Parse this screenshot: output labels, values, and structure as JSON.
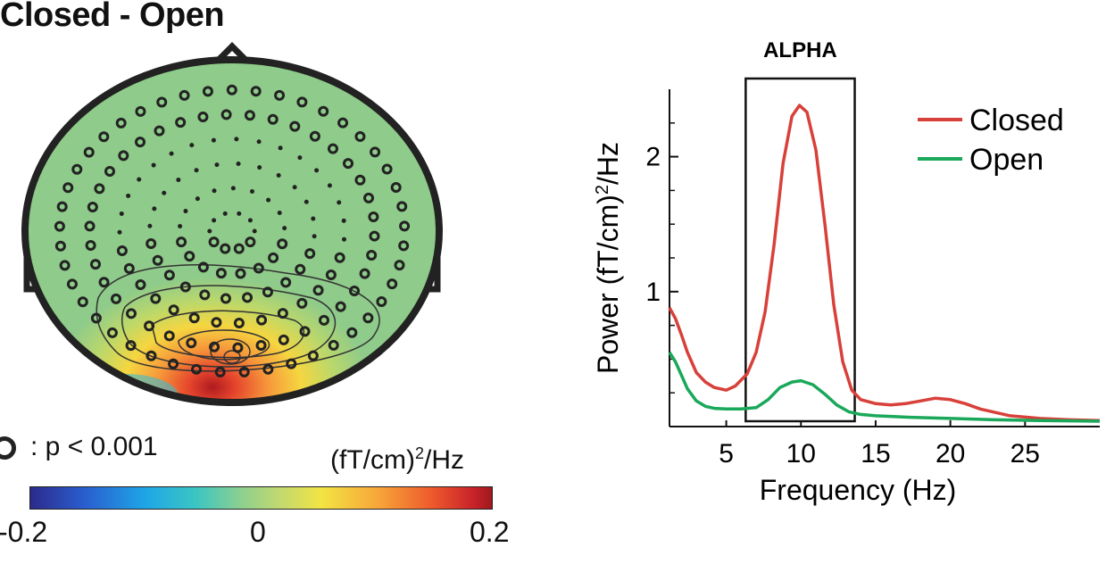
{
  "topomap": {
    "title": "Closed - Open",
    "significance_label": ": p < 0.001",
    "colorbar": {
      "unit": "(fT/cm)",
      "unit_exp": "2",
      "unit_suffix": "/Hz",
      "min_label": "-0.2",
      "mid_label": "0",
      "max_label": "0.2",
      "range": [
        -0.2,
        0.2
      ]
    }
  },
  "chart_data": {
    "type": "line",
    "title": "",
    "xlabel": "Frequency (Hz)",
    "ylabel": "Power (fT/cm)",
    "ylabel_exp": "2",
    "ylabel_suffix": "/Hz",
    "xlim": [
      1.2,
      30
    ],
    "ylim": [
      0,
      2.5
    ],
    "x_ticks": [
      5,
      10,
      15,
      20,
      25
    ],
    "y_ticks": [
      1,
      2
    ],
    "annotation": {
      "label": "ALPHA",
      "x_range": [
        6.3,
        13.6
      ]
    },
    "legend_position": "top-right",
    "series": [
      {
        "name": "Closed",
        "color": "#d8403a",
        "x": [
          1.2,
          1.6,
          2.0,
          2.4,
          3.0,
          3.6,
          4.2,
          5.0,
          5.6,
          6.4,
          7.0,
          7.6,
          8.2,
          8.8,
          9.4,
          9.9,
          10.4,
          11.0,
          11.6,
          12.2,
          12.8,
          13.4,
          14.0,
          15,
          16,
          17,
          18,
          19,
          20,
          21,
          22,
          24,
          26,
          28,
          30
        ],
        "values": [
          0.88,
          0.8,
          0.68,
          0.55,
          0.4,
          0.33,
          0.29,
          0.27,
          0.3,
          0.39,
          0.55,
          0.85,
          1.35,
          1.95,
          2.3,
          2.38,
          2.33,
          2.05,
          1.5,
          0.9,
          0.48,
          0.27,
          0.2,
          0.17,
          0.16,
          0.17,
          0.19,
          0.21,
          0.2,
          0.17,
          0.13,
          0.08,
          0.06,
          0.05,
          0.045
        ]
      },
      {
        "name": "Open",
        "color": "#1aa85a",
        "x": [
          1.2,
          1.6,
          2.0,
          2.4,
          3.0,
          3.6,
          4.2,
          5.0,
          6.0,
          7.0,
          7.8,
          8.6,
          9.4,
          10.0,
          10.8,
          11.6,
          12.4,
          13.2,
          14.0,
          15,
          17,
          20,
          23,
          26,
          30
        ],
        "values": [
          0.55,
          0.48,
          0.38,
          0.28,
          0.19,
          0.15,
          0.135,
          0.13,
          0.13,
          0.14,
          0.2,
          0.29,
          0.33,
          0.34,
          0.31,
          0.24,
          0.16,
          0.11,
          0.09,
          0.08,
          0.07,
          0.06,
          0.05,
          0.045,
          0.04
        ]
      }
    ]
  }
}
